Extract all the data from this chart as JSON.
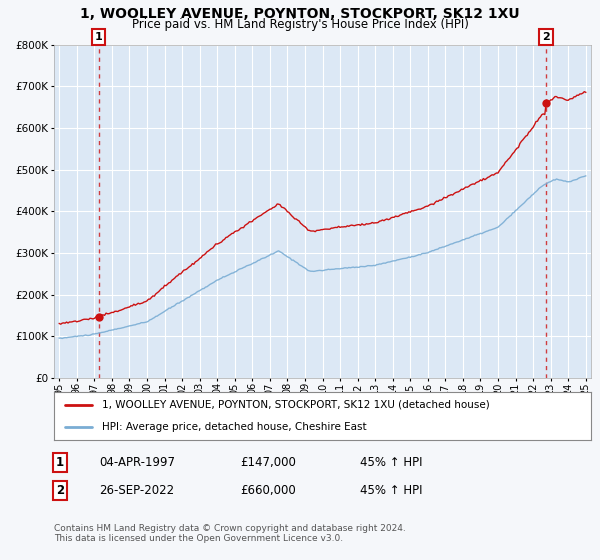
{
  "title": "1, WOOLLEY AVENUE, POYNTON, STOCKPORT, SK12 1XU",
  "subtitle": "Price paid vs. HM Land Registry's House Price Index (HPI)",
  "ylim": [
    0,
    800000
  ],
  "xlim_start": 1994.7,
  "xlim_end": 2025.3,
  "sale1_date": 1997.25,
  "sale1_price": 147000,
  "sale2_date": 2022.73,
  "sale2_price": 660000,
  "hpi_color": "#7aadd4",
  "price_color": "#cc1111",
  "bg_color": "#f5f7fa",
  "plot_bg": "#dce8f5",
  "grid_color": "#ffffff",
  "legend_label1": "1, WOOLLEY AVENUE, POYNTON, STOCKPORT, SK12 1XU (detached house)",
  "legend_label2": "HPI: Average price, detached house, Cheshire East",
  "note1_num": "1",
  "note1_date": "04-APR-1997",
  "note1_price": "£147,000",
  "note1_hpi": "45% ↑ HPI",
  "note2_num": "2",
  "note2_date": "26-SEP-2022",
  "note2_price": "£660,000",
  "note2_hpi": "45% ↑ HPI",
  "copyright": "Contains HM Land Registry data © Crown copyright and database right 2024.\nThis data is licensed under the Open Government Licence v3.0."
}
